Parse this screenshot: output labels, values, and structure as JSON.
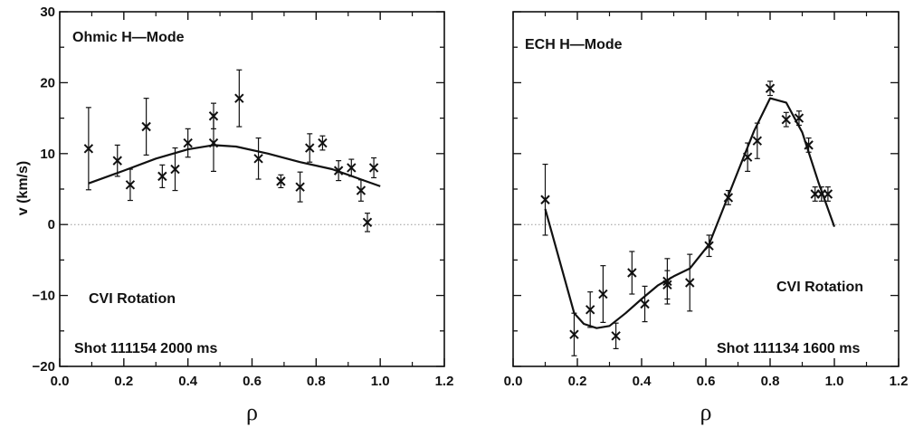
{
  "chart_data": [
    {
      "type": "scatter",
      "xlabel": "ρ",
      "ylabel": "v   (km/s)",
      "xlim": [
        0.0,
        1.2
      ],
      "ylim": [
        -20,
        30
      ],
      "xticks": [
        "0.0",
        "0.2",
        "0.4",
        "0.6",
        "0.8",
        "1.0",
        "1.2"
      ],
      "yticks": [
        "30",
        "20",
        "10",
        "0",
        "−10",
        "−20"
      ],
      "zero_line": true,
      "grid": false,
      "annotations": [
        "Ohmic H—Mode",
        "CVI Rotation",
        "Shot 111154 2000 ms"
      ],
      "points": [
        {
          "x": 0.09,
          "y": 10.7,
          "err": 5.8
        },
        {
          "x": 0.18,
          "y": 9.0,
          "err": 2.2
        },
        {
          "x": 0.22,
          "y": 5.6,
          "err": 2.2
        },
        {
          "x": 0.27,
          "y": 13.8,
          "err": 4.0
        },
        {
          "x": 0.32,
          "y": 6.8,
          "err": 1.6
        },
        {
          "x": 0.36,
          "y": 7.8,
          "err": 3.0
        },
        {
          "x": 0.4,
          "y": 11.5,
          "err": 2.0
        },
        {
          "x": 0.48,
          "y": 15.3,
          "err": 1.8
        },
        {
          "x": 0.48,
          "y": 11.5,
          "err": 4.0
        },
        {
          "x": 0.56,
          "y": 17.8,
          "err": 4.0
        },
        {
          "x": 0.62,
          "y": 9.3,
          "err": 2.9
        },
        {
          "x": 0.69,
          "y": 6.1,
          "err": 0.9
        },
        {
          "x": 0.75,
          "y": 5.3,
          "err": 2.1
        },
        {
          "x": 0.78,
          "y": 10.8,
          "err": 2.0
        },
        {
          "x": 0.82,
          "y": 11.5,
          "err": 1.0
        },
        {
          "x": 0.87,
          "y": 7.6,
          "err": 1.4
        },
        {
          "x": 0.91,
          "y": 8.0,
          "err": 1.2
        },
        {
          "x": 0.94,
          "y": 4.8,
          "err": 1.5
        },
        {
          "x": 0.96,
          "y": 0.3,
          "err": 1.3
        },
        {
          "x": 0.98,
          "y": 8.0,
          "err": 1.4
        }
      ],
      "fit": {
        "x": [
          0.09,
          0.2,
          0.3,
          0.4,
          0.48,
          0.55,
          0.65,
          0.75,
          0.85,
          0.95,
          1.0
        ],
        "y": [
          5.8,
          7.6,
          9.3,
          10.6,
          11.2,
          11.0,
          10.0,
          8.8,
          7.8,
          6.2,
          5.4
        ]
      }
    },
    {
      "type": "scatter",
      "xlabel": "ρ",
      "xlim": [
        0.0,
        1.2
      ],
      "ylim": [
        -20,
        30
      ],
      "xticks": [
        "0.0",
        "0.2",
        "0.4",
        "0.6",
        "0.8",
        "1.0",
        "1.2"
      ],
      "zero_line": true,
      "grid": false,
      "annotations": [
        "ECH H—Mode",
        "CVI Rotation",
        "Shot 111134 1600 ms"
      ],
      "points": [
        {
          "x": 0.1,
          "y": 3.5,
          "err": 5.0
        },
        {
          "x": 0.19,
          "y": -15.5,
          "err": 3.0
        },
        {
          "x": 0.24,
          "y": -12.0,
          "err": 2.5
        },
        {
          "x": 0.28,
          "y": -9.8,
          "err": 4.0
        },
        {
          "x": 0.32,
          "y": -15.7,
          "err": 1.8
        },
        {
          "x": 0.37,
          "y": -6.8,
          "err": 3.0
        },
        {
          "x": 0.41,
          "y": -11.2,
          "err": 2.5
        },
        {
          "x": 0.48,
          "y": -8.5,
          "err": 2.0
        },
        {
          "x": 0.48,
          "y": -8.0,
          "err": 3.2
        },
        {
          "x": 0.55,
          "y": -8.2,
          "err": 4.0
        },
        {
          "x": 0.61,
          "y": -3.0,
          "err": 1.5
        },
        {
          "x": 0.67,
          "y": 3.8,
          "err": 1.0
        },
        {
          "x": 0.73,
          "y": 9.5,
          "err": 2.0
        },
        {
          "x": 0.76,
          "y": 11.8,
          "err": 2.5
        },
        {
          "x": 0.8,
          "y": 19.2,
          "err": 1.0
        },
        {
          "x": 0.85,
          "y": 14.8,
          "err": 1.0
        },
        {
          "x": 0.89,
          "y": 15.0,
          "err": 1.0
        },
        {
          "x": 0.92,
          "y": 11.2,
          "err": 1.0
        },
        {
          "x": 0.94,
          "y": 4.3,
          "err": 1.0
        },
        {
          "x": 0.96,
          "y": 4.3,
          "err": 1.0
        },
        {
          "x": 0.98,
          "y": 4.3,
          "err": 1.0
        }
      ],
      "fit": {
        "x": [
          0.1,
          0.19,
          0.22,
          0.26,
          0.3,
          0.35,
          0.4,
          0.45,
          0.5,
          0.55,
          0.61,
          0.65,
          0.7,
          0.75,
          0.8,
          0.85,
          0.9,
          0.95,
          1.0
        ],
        "y": [
          2.2,
          -12.5,
          -14.0,
          -14.6,
          -14.3,
          -12.5,
          -10.5,
          -8.6,
          -7.3,
          -6.2,
          -2.8,
          1.8,
          7.5,
          13.2,
          17.8,
          17.2,
          13.0,
          6.0,
          -0.3
        ]
      }
    }
  ]
}
